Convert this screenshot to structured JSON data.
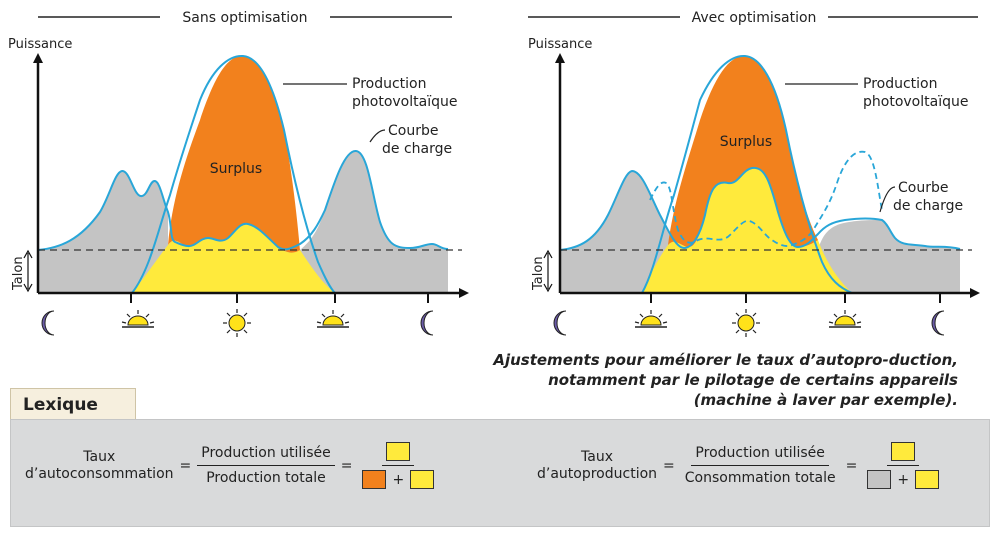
{
  "left_panel": {
    "header": "Sans optimisation",
    "y_axis_label": "Puissance",
    "talon_label": "Talon",
    "surplus_label": "Surplus",
    "production_label_line1": "Production",
    "production_label_line2": "photovoltaïque",
    "load_label_line1": "Courbe",
    "load_label_line2": "de charge"
  },
  "right_panel": {
    "header": "Avec optimisation",
    "y_axis_label": "Puissance",
    "talon_label": "Talon",
    "surplus_label": "Surplus",
    "production_label_line1": "Production",
    "production_label_line2": "photovoltaïque",
    "load_label_line1": "Courbe",
    "load_label_line2": "de charge"
  },
  "time_icons": [
    "moon-icon",
    "sunrise-icon",
    "sun-icon",
    "sunset-icon",
    "moon-icon"
  ],
  "colors": {
    "surplus": "#f2811d",
    "self_consumed": "#ffea3c",
    "grid_consumption": "#c4c4c4",
    "curve": "#29a6d8",
    "moon": "#6b5ba8",
    "sun": "#ffe21a"
  },
  "caption": "Ajustements pour améliorer le taux d’autopro-duction, notamment  par le pilotage de certains appareils (machine à laver par exemple).",
  "lexique": {
    "title": "Lexique",
    "autoconsommation": {
      "name_line1": "Taux",
      "name_line2": "d’autoconsommation",
      "numerator": "Production utilisée",
      "denominator": "Production totale"
    },
    "autoproduction": {
      "name_line1": "Taux",
      "name_line2": "d’autoproduction",
      "numerator": "Production utilisée",
      "denominator": "Consommation totale"
    },
    "equals": "=",
    "plus": "+"
  }
}
